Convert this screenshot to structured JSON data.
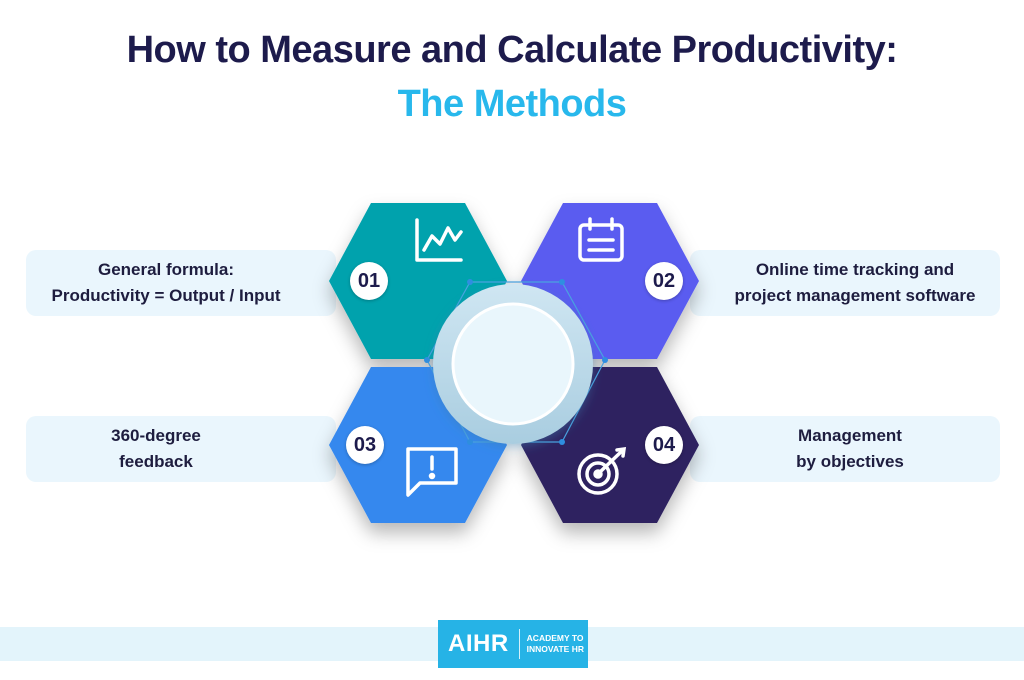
{
  "title": {
    "line1": "How to Measure and Calculate Productivity:",
    "line2": "The Methods"
  },
  "methods": [
    {
      "number": "01",
      "lines": [
        "General formula:",
        "Productivity = Output / Input"
      ],
      "icon": "line-chart-icon",
      "color": "#00a2ad"
    },
    {
      "number": "02",
      "lines": [
        "Online time tracking and",
        "project management software"
      ],
      "icon": "calendar-icon",
      "color": "#5a5cf0"
    },
    {
      "number": "03",
      "lines": [
        "360-degree",
        "feedback"
      ],
      "icon": "feedback-icon",
      "color": "#3588ee"
    },
    {
      "number": "04",
      "lines": [
        "Management",
        "by objectives"
      ],
      "icon": "target-icon",
      "color": "#2e2461"
    }
  ],
  "footer": {
    "logo_main": "AIHR",
    "logo_sub": [
      "ACADEMY TO",
      "INNOVATE HR"
    ]
  }
}
